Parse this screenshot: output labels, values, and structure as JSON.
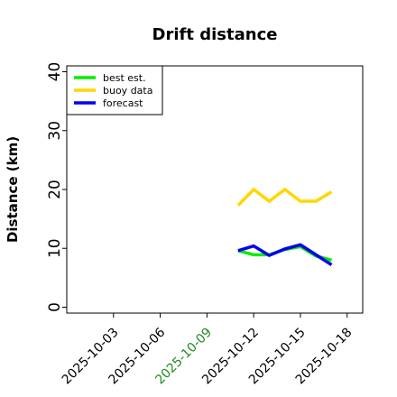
{
  "chart_data": {
    "type": "line",
    "title": "Drift distance",
    "xlabel": "",
    "ylabel": "Distance (km)",
    "ylim": [
      -1,
      41
    ],
    "xlim": [
      "2025-09-30",
      "2025-10-19"
    ],
    "yticks": [
      0,
      10,
      20,
      30,
      40
    ],
    "xticks": [
      {
        "label": "2025-10-03",
        "date": "2025-10-03",
        "color": "#000000"
      },
      {
        "label": "2025-10-06",
        "date": "2025-10-06",
        "color": "#000000"
      },
      {
        "label": "2025-10-09",
        "date": "2025-10-09",
        "color": "#228b22"
      },
      {
        "label": "2025-10-12",
        "date": "2025-10-12",
        "color": "#000000"
      },
      {
        "label": "2025-10-15",
        "date": "2025-10-15",
        "color": "#000000"
      },
      {
        "label": "2025-10-18",
        "date": "2025-10-18",
        "color": "#000000"
      }
    ],
    "grid": false,
    "legend_position": "top-left",
    "series": [
      {
        "name": "best est.",
        "color": "#00ee00",
        "points": [
          {
            "x": "2025-10-11",
            "y": 9.6
          },
          {
            "x": "2025-10-12",
            "y": 8.9
          },
          {
            "x": "2025-10-13",
            "y": 8.9
          },
          {
            "x": "2025-10-14",
            "y": 9.8
          },
          {
            "x": "2025-10-15",
            "y": 10.3
          },
          {
            "x": "2025-10-16",
            "y": 8.7
          },
          {
            "x": "2025-10-17",
            "y": 8.0
          }
        ]
      },
      {
        "name": "buoy data",
        "color": "#ffd700",
        "points": [
          {
            "x": "2025-10-11",
            "y": 17.3
          },
          {
            "x": "2025-10-12",
            "y": 20.0
          },
          {
            "x": "2025-10-13",
            "y": 18.0
          },
          {
            "x": "2025-10-14",
            "y": 20.0
          },
          {
            "x": "2025-10-15",
            "y": 18.0
          },
          {
            "x": "2025-10-16",
            "y": 18.0
          },
          {
            "x": "2025-10-17",
            "y": 19.6
          }
        ]
      },
      {
        "name": "forecast",
        "color": "#0000ee",
        "points": [
          {
            "x": "2025-10-11",
            "y": 9.6
          },
          {
            "x": "2025-10-12",
            "y": 10.4
          },
          {
            "x": "2025-10-13",
            "y": 8.8
          },
          {
            "x": "2025-10-14",
            "y": 9.9
          },
          {
            "x": "2025-10-15",
            "y": 10.6
          },
          {
            "x": "2025-10-16",
            "y": 8.9
          },
          {
            "x": "2025-10-17",
            "y": 7.2
          }
        ]
      }
    ]
  }
}
